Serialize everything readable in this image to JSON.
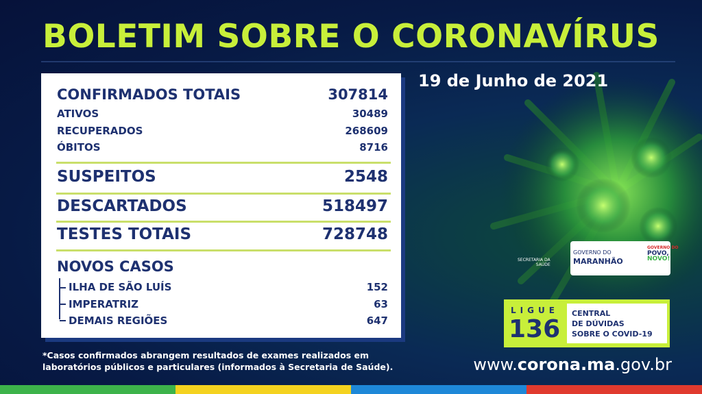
{
  "header": {
    "title": "BOLETIM SOBRE O CORONAVÍRUS",
    "date": "19 de Junho de 2021"
  },
  "summary": {
    "label": "CONFIRMADOS TOTAIS",
    "value": 307814,
    "breakdown": [
      {
        "label": "ATIVOS",
        "value": 30489
      },
      {
        "label": "RECUPERADOS",
        "value": 268609
      },
      {
        "label": "ÓBITOS",
        "value": 8716
      }
    ]
  },
  "totals": [
    {
      "label": "SUSPEITOS",
      "value": 2548
    },
    {
      "label": "DESCARTADOS",
      "value": 518497
    },
    {
      "label": "TESTES TOTAIS",
      "value": 728748
    }
  ],
  "new_cases": {
    "title": "NOVOS CASOS",
    "items": [
      {
        "label": "ILHA DE SÃO LUÍS",
        "value": 152
      },
      {
        "label": "IMPERATRIZ",
        "value": 63
      },
      {
        "label": "DEMAIS REGIÕES",
        "value": 647
      }
    ]
  },
  "footnote": [
    "*Casos confirmados abrangem resultados de exames realizados em",
    "laboratórios públicos e particulares (informados à Secretaria de Saúde)."
  ],
  "logo": {
    "secretaria": [
      "SECRETARIA DA",
      "SAÚDE"
    ],
    "governo": "GOVERNO DO",
    "state": "MARANHÃO",
    "slogan": [
      "GOVERNO DO",
      "POVO,",
      "NOVO!"
    ]
  },
  "hotline": {
    "ligue": "LIGUE",
    "number": 136,
    "lines": [
      "CENTRAL",
      "DE DÚVIDAS",
      "SOBRE O COVID-19"
    ]
  },
  "url": {
    "prefix": "www.",
    "domain": "corona.ma",
    "suffix": ".gov.br"
  }
}
